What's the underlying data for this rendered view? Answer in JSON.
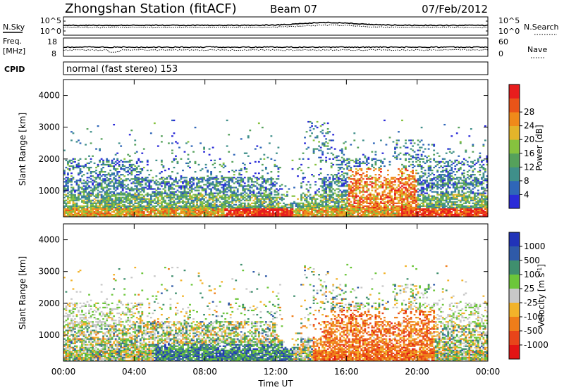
{
  "header": {
    "station": "Zhongshan Station (fitACF)",
    "beam": "Beam 07",
    "date": "07/Feb/2012"
  },
  "noise_panel": {
    "left_label": "N.Sky",
    "right_label": "N.Search",
    "left_ticks": [
      "10^5",
      "10^0"
    ],
    "right_ticks": [
      "10^5",
      "10^0"
    ]
  },
  "freq_panel": {
    "left_label_line1": "Freq.",
    "left_label_line2": "[MHz]",
    "left_ticks": [
      "18",
      "8"
    ],
    "right_label": "Nave",
    "right_ticks": [
      "60",
      "0"
    ]
  },
  "cpid": {
    "label": "CPID",
    "text": "normal (fast stereo) 153"
  },
  "chart_data": [
    {
      "type": "heatmap",
      "name": "power",
      "ylabel": "Slant Range [km]",
      "ylim": [
        180,
        4500
      ],
      "yticks": [
        1000,
        2000,
        3000,
        4000
      ],
      "xlim": [
        0,
        24
      ],
      "xticks": [
        "00:00",
        "04:00",
        "08:00",
        "12:00",
        "16:00",
        "20:00",
        "00:00"
      ],
      "colorbar": {
        "label": "Power [dB]",
        "ticks": [
          "4",
          "8",
          "12",
          "16",
          "20",
          "24",
          "28"
        ],
        "colors": [
          "#2a2ad8",
          "#2f66b8",
          "#3f8f8a",
          "#55a15b",
          "#86c23e",
          "#e3b42a",
          "#ef8a1a",
          "#ea5418",
          "#e81d1d"
        ]
      }
    },
    {
      "type": "heatmap",
      "name": "velocity",
      "ylabel": "Slant Range [km]",
      "ylim": [
        180,
        4500
      ],
      "yticks": [
        1000,
        2000,
        3000,
        4000
      ],
      "xlim": [
        0,
        24
      ],
      "xticks": [
        "00:00",
        "04:00",
        "08:00",
        "12:00",
        "16:00",
        "20:00",
        "00:00"
      ],
      "xlabel": "Time UT",
      "colorbar": {
        "label": "Velocity [m s-1]",
        "label_main": "Velocity [m s",
        "label_exp": "-1",
        "label_end": "]",
        "ticks": [
          "1000",
          "500",
          "100",
          "25",
          "-25",
          "-100",
          "-500",
          "-1000"
        ],
        "colors": [
          "#2133b8",
          "#2f5aa8",
          "#3f8f6e",
          "#6cc63a",
          "#c8c8c8",
          "#f2b32a",
          "#ef7d1a",
          "#e8451a",
          "#e31414"
        ]
      }
    }
  ]
}
